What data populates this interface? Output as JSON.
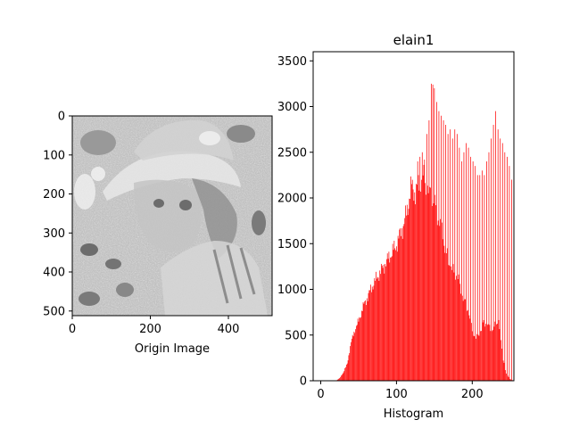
{
  "chart_data": [
    {
      "type": "image",
      "xlabel": "Origin Image",
      "xticks": [
        0,
        200,
        400
      ],
      "yticks": [
        0,
        100,
        200,
        300,
        400,
        500
      ],
      "xlim": [
        0,
        511
      ],
      "ylim": [
        511,
        0
      ],
      "image_description_colormap": "gray"
    },
    {
      "type": "bar",
      "title": "elain1",
      "xlabel": "Histogram",
      "xticks": [
        0,
        100,
        200
      ],
      "yticks": [
        0,
        500,
        1000,
        1500,
        2000,
        2500,
        3000,
        3500
      ],
      "xlim": [
        -10,
        255
      ],
      "ylim": [
        0,
        3600
      ],
      "bar_color": "#ff0000",
      "envelope_x": [
        0,
        20,
        25,
        30,
        35,
        40,
        45,
        50,
        55,
        60,
        70,
        80,
        90,
        100,
        110,
        115,
        120,
        125,
        130,
        135,
        140,
        145,
        150,
        155,
        160,
        165,
        170,
        175,
        180,
        185,
        190,
        195,
        200,
        205,
        210,
        215,
        220,
        225,
        230,
        235,
        240,
        245,
        250,
        255
      ],
      "envelope_y": [
        0,
        0,
        30,
        100,
        200,
        450,
        600,
        700,
        850,
        950,
        1150,
        1300,
        1450,
        1600,
        1850,
        2050,
        2300,
        2200,
        2350,
        2400,
        2250,
        2250,
        2150,
        1900,
        1750,
        1550,
        1350,
        1300,
        1250,
        1050,
        950,
        800,
        600,
        500,
        550,
        700,
        650,
        600,
        650,
        700,
        300,
        80,
        20,
        0
      ],
      "spikes": [
        [
          128,
          2400
        ],
        [
          131,
          2450
        ],
        [
          134,
          2500
        ],
        [
          137,
          2420
        ],
        [
          140,
          2700
        ],
        [
          143,
          2850
        ],
        [
          146,
          3250
        ],
        [
          148,
          3240
        ],
        [
          150,
          3200
        ],
        [
          153,
          3050
        ],
        [
          156,
          2950
        ],
        [
          159,
          2900
        ],
        [
          162,
          2850
        ],
        [
          165,
          2800
        ],
        [
          168,
          2700
        ],
        [
          171,
          2750
        ],
        [
          174,
          2650
        ],
        [
          177,
          2750
        ],
        [
          180,
          2700
        ],
        [
          183,
          2550
        ],
        [
          186,
          2400
        ],
        [
          189,
          2500
        ],
        [
          192,
          2600
        ],
        [
          195,
          2550
        ],
        [
          198,
          2450
        ],
        [
          201,
          2400
        ],
        [
          204,
          2350
        ],
        [
          207,
          2250
        ],
        [
          210,
          2250
        ],
        [
          213,
          2300
        ],
        [
          216,
          2250
        ],
        [
          219,
          2400
        ],
        [
          222,
          2500
        ],
        [
          225,
          2650
        ],
        [
          228,
          2800
        ],
        [
          231,
          2950
        ],
        [
          234,
          2750
        ],
        [
          237,
          2650
        ],
        [
          240,
          2600
        ],
        [
          243,
          2500
        ],
        [
          246,
          2450
        ],
        [
          249,
          2350
        ],
        [
          252,
          2200
        ],
        [
          255,
          2150
        ]
      ]
    }
  ]
}
